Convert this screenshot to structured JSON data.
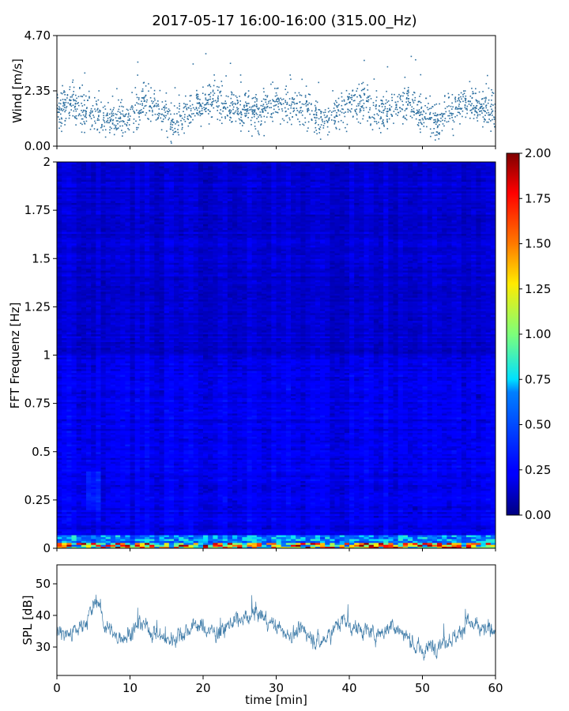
{
  "title": "2017-05-17 16:00-16:00 (315.00_Hz)",
  "chart_data": [
    {
      "type": "scatter",
      "ylabel": "Wind [m/s]",
      "xlim": [
        0,
        60
      ],
      "ylim": [
        0,
        4.7
      ],
      "yticks": [
        "0.00",
        "2.35",
        "4.70"
      ],
      "grid": false,
      "color": "#2c6fa0",
      "trend": [
        [
          0,
          1.5
        ],
        [
          2,
          1.9
        ],
        [
          4,
          1.4
        ],
        [
          6,
          1.2
        ],
        [
          8,
          1.0
        ],
        [
          10,
          1.2
        ],
        [
          12,
          2.0
        ],
        [
          14,
          1.6
        ],
        [
          16,
          0.9
        ],
        [
          18,
          1.5
        ],
        [
          20,
          1.8
        ],
        [
          22,
          1.9
        ],
        [
          24,
          1.6
        ],
        [
          26,
          1.5
        ],
        [
          28,
          1.4
        ],
        [
          30,
          1.9
        ],
        [
          32,
          1.7
        ],
        [
          34,
          1.5
        ],
        [
          36,
          1.1
        ],
        [
          38,
          1.4
        ],
        [
          40,
          1.8
        ],
        [
          42,
          1.9
        ],
        [
          44,
          1.4
        ],
        [
          46,
          1.6
        ],
        [
          48,
          2.0
        ],
        [
          50,
          1.3
        ],
        [
          52,
          1.0
        ],
        [
          54,
          1.6
        ],
        [
          56,
          1.9
        ],
        [
          58,
          1.6
        ],
        [
          60,
          1.4
        ]
      ]
    },
    {
      "type": "heatmap",
      "ylabel": "FFT Frequenz [Hz]",
      "xlim": [
        0,
        60
      ],
      "ylim": [
        0,
        2
      ],
      "yticks": [
        "0",
        "0.25",
        "0.5",
        "0.75",
        "1",
        "1.25",
        "1.5",
        "1.75",
        "2"
      ],
      "colorscale": "jet",
      "colorbar": {
        "min": 0,
        "max": 2,
        "ticks": [
          "0.00",
          "0.25",
          "0.50",
          "0.75",
          "1.00",
          "1.25",
          "1.50",
          "1.75",
          "2.00"
        ]
      },
      "typical_value": 0.2,
      "low_frequency_band_max": 2.0
    },
    {
      "type": "line",
      "ylabel": "SPL [dB]",
      "xlabel": "time [min]",
      "xlim": [
        0,
        60
      ],
      "ylim": [
        21,
        56
      ],
      "xticks": [
        "0",
        "10",
        "20",
        "30",
        "40",
        "50",
        "60"
      ],
      "yticks": [
        "30",
        "40",
        "50"
      ],
      "grid": false,
      "color": "#2c6fa0",
      "trend": [
        [
          0,
          35
        ],
        [
          2,
          34
        ],
        [
          4,
          38
        ],
        [
          5.5,
          46
        ],
        [
          6.5,
          37
        ],
        [
          8,
          33
        ],
        [
          10,
          34
        ],
        [
          11.5,
          38
        ],
        [
          13,
          35
        ],
        [
          15,
          32
        ],
        [
          17,
          34
        ],
        [
          19,
          37
        ],
        [
          20,
          36
        ],
        [
          22,
          34
        ],
        [
          24,
          38
        ],
        [
          26,
          39
        ],
        [
          27,
          41
        ],
        [
          28,
          40
        ],
        [
          30,
          36
        ],
        [
          32,
          34
        ],
        [
          34,
          35
        ],
        [
          35,
          33
        ],
        [
          36,
          31
        ],
        [
          38,
          36
        ],
        [
          39,
          39
        ],
        [
          40,
          37
        ],
        [
          42,
          35
        ],
        [
          44,
          34
        ],
        [
          46,
          37
        ],
        [
          48,
          33
        ],
        [
          50,
          28
        ],
        [
          51,
          30
        ],
        [
          53,
          32
        ],
        [
          55,
          34
        ],
        [
          56,
          38
        ],
        [
          57,
          37
        ],
        [
          58,
          35
        ],
        [
          60,
          36
        ]
      ]
    }
  ]
}
